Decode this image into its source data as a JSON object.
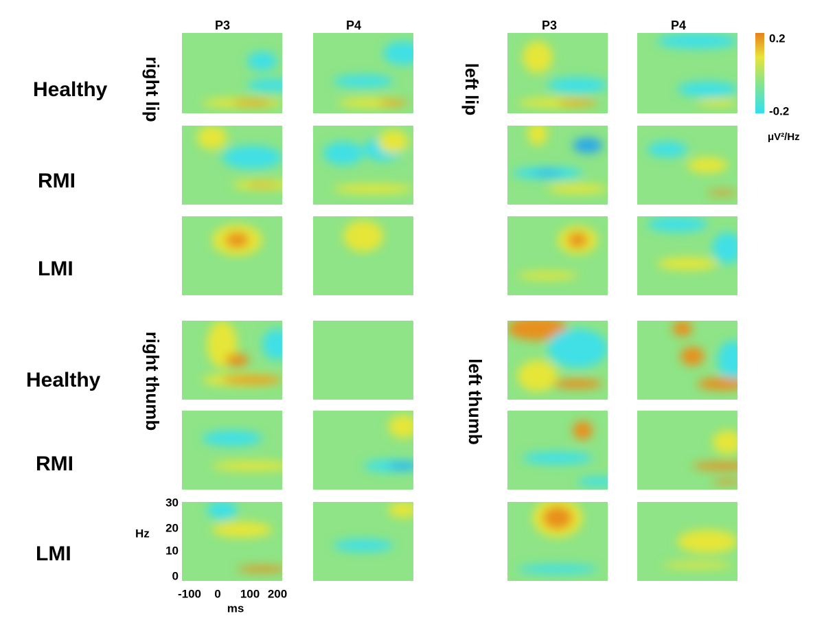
{
  "columns": {
    "left": [
      "P3",
      "P4"
    ],
    "right": [
      "P3",
      "P4"
    ]
  },
  "rows": [
    "Healthy",
    "RMI",
    "LMI",
    "Healthy",
    "RMI",
    "LMI"
  ],
  "conditions": {
    "right_lip": "right lip",
    "left_lip": "left lip",
    "right_thumb": "right thumb",
    "left_thumb": "left thumb"
  },
  "colorbar": {
    "max": "0.2",
    "min": "-0.2",
    "unit": "μV²/Hz"
  },
  "axes": {
    "y_label": "Hz",
    "y_ticks": [
      "30",
      "20",
      "10",
      "0"
    ],
    "x_label": "ms",
    "x_ticks": [
      "-100",
      "0",
      "100",
      "200"
    ]
  }
}
